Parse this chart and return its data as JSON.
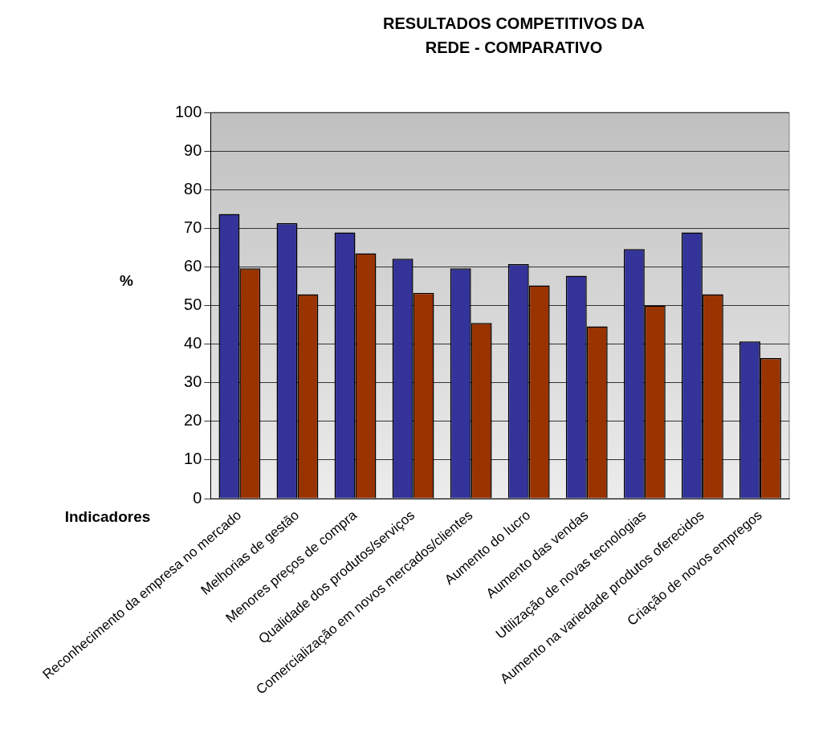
{
  "chart_data": {
    "type": "bar",
    "title": "RESULTADOS COMPETITIVOS DA REDE - COMPARATIVO",
    "xlabel": "Indicadores",
    "ylabel": "%",
    "categories": [
      "Reconhecimento da empresa no mercado",
      "Melhorias de gestão",
      "Menores preços de compra",
      "Qualidade dos produtos/serviços",
      "Comercialização em novos mercados/clientes",
      "Aumento do lucro",
      "Aumento das vendas",
      "Utilização de novas tecnologias",
      "Aumento na variedade produtos oferecidos",
      "Criação de novos empregos"
    ],
    "series": [
      {
        "color": "#333399",
        "values": [
          73.7,
          71.3,
          68.9,
          62.1,
          59.6,
          60.7,
          57.7,
          64.6,
          68.9,
          40.7
        ]
      },
      {
        "color": "#993300",
        "values": [
          59.6,
          52.9,
          63.5,
          53.3,
          45.5,
          55.2,
          44.6,
          50.0,
          52.9,
          36.4
        ]
      }
    ],
    "ylim": [
      0,
      100
    ],
    "yticks": [
      0,
      10,
      20,
      30,
      40,
      50,
      60,
      70,
      80,
      90,
      100
    ],
    "grid": "y",
    "legend": false
  }
}
